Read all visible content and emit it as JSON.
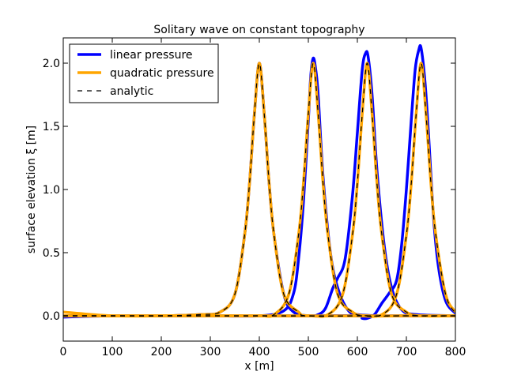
{
  "chart_data": {
    "type": "line",
    "title": "Solitary wave on constant topography",
    "xlabel": "x [m]",
    "ylabel": "surface elevation ξ [m]",
    "xlim": [
      0,
      800
    ],
    "ylim": [
      -0.2,
      2.2
    ],
    "x_ticks": [
      0,
      100,
      200,
      300,
      400,
      500,
      600,
      700,
      800
    ],
    "x_tick_labels": [
      "0",
      "100",
      "200",
      "300",
      "400",
      "500",
      "600",
      "700",
      "800"
    ],
    "y_ticks": [
      0.0,
      0.5,
      1.0,
      1.5,
      2.0
    ],
    "y_tick_labels": [
      "0.0",
      "0.5",
      "1.0",
      "1.5",
      "2.0"
    ],
    "grid": false,
    "legend_position": "top-left",
    "legend": [
      {
        "label": "linear pressure",
        "color": "#0000ff",
        "style": "solid"
      },
      {
        "label": "quadratic pressure",
        "color": "#ffa500",
        "style": "solid"
      },
      {
        "label": "analytic",
        "color": "#000000",
        "style": "dashed"
      }
    ],
    "series": [
      {
        "name": "linear pressure",
        "color": "#0000ff",
        "curves": [
          {
            "x": [
              0,
              100,
              200,
              280,
              320,
              350,
              370,
              380,
              390,
              400,
              410,
              420,
              430,
              450,
              470,
              500,
              550,
              600,
              700,
              800
            ],
            "y": [
              -0.01,
              0.0,
              0.0,
              0.01,
              0.03,
              0.17,
              0.64,
              1.05,
              1.6,
              2.0,
              1.6,
              1.05,
              0.64,
              0.17,
              0.03,
              0.0,
              0.0,
              0.0,
              0.0,
              0.0
            ]
          },
          {
            "x": [
              0,
              100,
              200,
              300,
              400,
              450,
              470,
              480,
              490,
              500,
              505,
              510,
              515,
              520,
              530,
              545,
              560,
              580,
              600,
              650,
              700,
              800
            ],
            "y": [
              0.0,
              0.0,
              0.0,
              0.0,
              0.0,
              0.04,
              0.18,
              0.45,
              0.9,
              1.55,
              1.9,
              2.04,
              1.95,
              1.75,
              1.1,
              0.5,
              0.22,
              0.05,
              0.01,
              0.0,
              0.0,
              0.0
            ]
          },
          {
            "x": [
              0,
              100,
              200,
              300,
              400,
              500,
              520,
              535,
              550,
              560,
              575,
              590,
              600,
              610,
              617,
              622,
              630,
              640,
              655,
              670,
              690,
              720,
              800
            ],
            "y": [
              0.0,
              0.0,
              0.0,
              0.0,
              0.0,
              0.0,
              0.01,
              0.06,
              0.22,
              0.3,
              0.45,
              0.95,
              1.45,
              1.95,
              2.08,
              2.05,
              1.75,
              1.15,
              0.55,
              0.22,
              0.05,
              0.01,
              0.0
            ]
          },
          {
            "x": [
              0,
              100,
              200,
              300,
              400,
              500,
              600,
              610,
              620,
              635,
              650,
              665,
              680,
              690,
              700,
              710,
              718,
              725,
              730,
              738,
              745,
              755,
              765,
              780,
              800
            ],
            "y": [
              0.0,
              0.0,
              0.0,
              0.0,
              0.0,
              0.0,
              0.0,
              -0.02,
              -0.02,
              0.01,
              0.1,
              0.18,
              0.28,
              0.55,
              1.0,
              1.55,
              1.95,
              2.1,
              2.12,
              1.85,
              1.45,
              0.8,
              0.4,
              0.12,
              0.02
            ]
          }
        ]
      },
      {
        "name": "quadratic pressure",
        "color": "#ffa500",
        "curves": [
          {
            "x": [
              0,
              100,
              200,
              280,
              320,
              350,
              370,
              380,
              390,
              400,
              410,
              420,
              430,
              450,
              480,
              500,
              600,
              700,
              800
            ],
            "y": [
              0.03,
              0.0,
              0.0,
              0.01,
              0.03,
              0.17,
              0.64,
              1.05,
              1.6,
              2.0,
              1.6,
              1.05,
              0.64,
              0.17,
              0.03,
              0.0,
              0.0,
              0.0,
              0.0
            ]
          },
          {
            "x": [
              0,
              100,
              200,
              300,
              400,
              430,
              460,
              480,
              490,
              500,
              510,
              520,
              530,
              540,
              560,
              590,
              620,
              700,
              800
            ],
            "y": [
              0.0,
              0.0,
              0.0,
              0.0,
              0.0,
              0.01,
              0.17,
              0.64,
              1.05,
              1.6,
              2.0,
              1.6,
              1.05,
              0.64,
              0.17,
              0.03,
              0.0,
              0.0,
              0.0
            ]
          },
          {
            "x": [
              0,
              100,
              200,
              300,
              400,
              500,
              540,
              570,
              590,
              600,
              610,
              620,
              630,
              640,
              650,
              670,
              700,
              730,
              800
            ],
            "y": [
              0.0,
              0.0,
              0.0,
              0.0,
              0.0,
              0.0,
              0.01,
              0.17,
              0.64,
              1.05,
              1.6,
              2.0,
              1.6,
              1.05,
              0.64,
              0.17,
              0.03,
              0.0,
              0.0
            ]
          },
          {
            "x": [
              0,
              100,
              200,
              300,
              400,
              500,
              600,
              650,
              680,
              700,
              710,
              720,
              730,
              740,
              750,
              760,
              780,
              800
            ],
            "y": [
              0.0,
              0.0,
              0.0,
              0.0,
              0.0,
              0.0,
              0.0,
              0.01,
              0.17,
              0.64,
              1.05,
              1.6,
              2.0,
              1.6,
              1.05,
              0.64,
              0.17,
              0.03
            ]
          }
        ]
      },
      {
        "name": "analytic",
        "color": "#000000",
        "curves": [
          {
            "x": [
              0,
              100,
              200,
              280,
              320,
              350,
              370,
              380,
              390,
              400,
              410,
              420,
              430,
              450,
              480,
              500,
              600,
              700,
              800
            ],
            "y": [
              0.0,
              0.0,
              0.0,
              0.01,
              0.03,
              0.17,
              0.64,
              1.05,
              1.6,
              2.0,
              1.6,
              1.05,
              0.64,
              0.17,
              0.03,
              0.0,
              0.0,
              0.0,
              0.0
            ]
          },
          {
            "x": [
              0,
              100,
              200,
              300,
              400,
              430,
              460,
              480,
              490,
              500,
              510,
              520,
              530,
              540,
              560,
              590,
              620,
              700,
              800
            ],
            "y": [
              0.0,
              0.0,
              0.0,
              0.0,
              0.0,
              0.01,
              0.17,
              0.64,
              1.05,
              1.6,
              2.0,
              1.6,
              1.05,
              0.64,
              0.17,
              0.03,
              0.0,
              0.0,
              0.0
            ]
          },
          {
            "x": [
              0,
              100,
              200,
              300,
              400,
              500,
              540,
              570,
              590,
              600,
              610,
              620,
              630,
              640,
              650,
              670,
              700,
              730,
              800
            ],
            "y": [
              0.0,
              0.0,
              0.0,
              0.0,
              0.0,
              0.0,
              0.01,
              0.17,
              0.64,
              1.05,
              1.6,
              2.0,
              1.6,
              1.05,
              0.64,
              0.17,
              0.03,
              0.0,
              0.0
            ]
          },
          {
            "x": [
              0,
              100,
              200,
              300,
              400,
              500,
              600,
              650,
              680,
              700,
              710,
              720,
              730,
              740,
              750,
              760,
              780,
              800
            ],
            "y": [
              0.0,
              0.0,
              0.0,
              0.0,
              0.0,
              0.0,
              0.0,
              0.01,
              0.17,
              0.64,
              1.05,
              1.6,
              2.0,
              1.6,
              1.05,
              0.64,
              0.17,
              0.02
            ]
          }
        ]
      }
    ]
  }
}
